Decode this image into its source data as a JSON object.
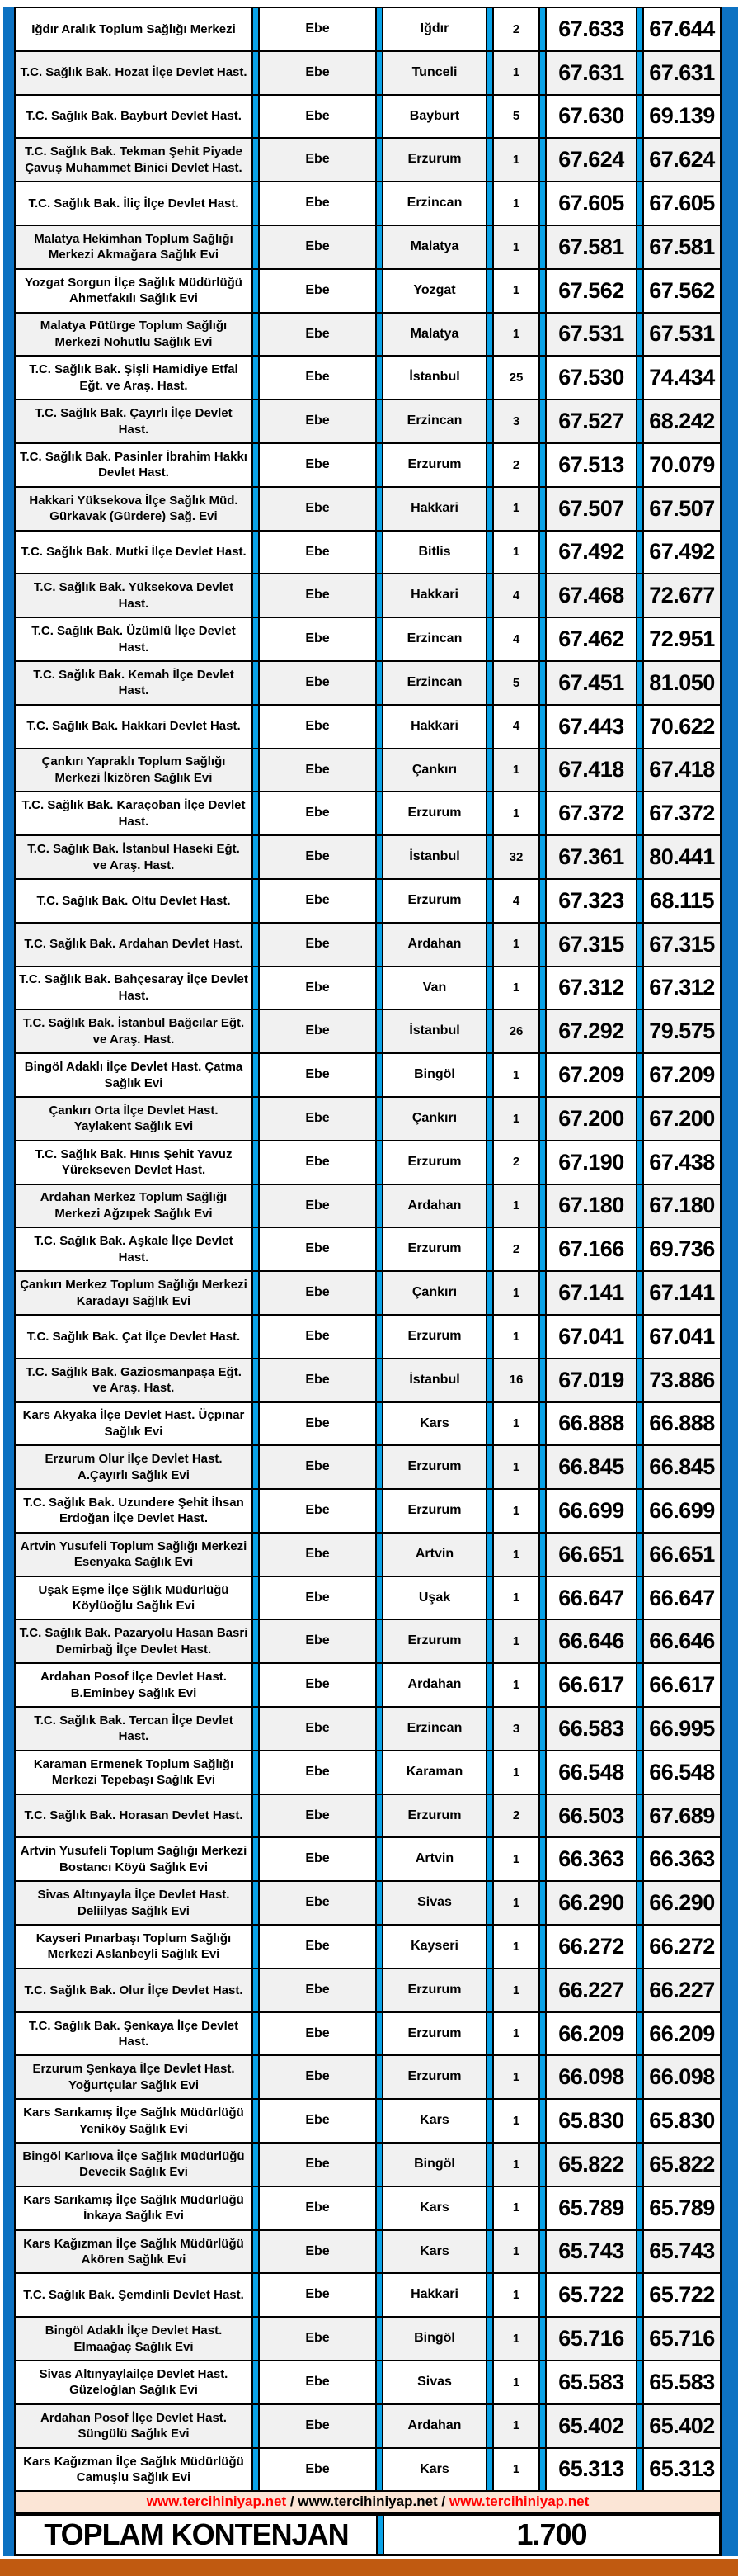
{
  "colors": {
    "accent_cyan": "#0aa3e8",
    "edge_blue": "#0d72c2",
    "footer_orange": "#c05a11",
    "footer_pink": "#fbe5d6",
    "link_red": "#ff0000",
    "row_alt": "#f1f1f1"
  },
  "table": {
    "rows": [
      {
        "institution": "Iğdır Aralık Toplum Sağlığı Merkezi",
        "title": "Ebe",
        "city": "Iğdır",
        "quota": "2",
        "score1": "67.633",
        "score2": "67.644"
      },
      {
        "institution": "T.C. Sağlık Bak. Hozat İlçe Devlet Hast.",
        "title": "Ebe",
        "city": "Tunceli",
        "quota": "1",
        "score1": "67.631",
        "score2": "67.631"
      },
      {
        "institution": "T.C. Sağlık Bak. Bayburt Devlet Hast.",
        "title": "Ebe",
        "city": "Bayburt",
        "quota": "5",
        "score1": "67.630",
        "score2": "69.139"
      },
      {
        "institution": "T.C. Sağlık Bak. Tekman Şehit Piyade Çavuş Muhammet Binici Devlet Hast.",
        "title": "Ebe",
        "city": "Erzurum",
        "quota": "1",
        "score1": "67.624",
        "score2": "67.624"
      },
      {
        "institution": "T.C. Sağlık Bak. İliç İlçe Devlet Hast.",
        "title": "Ebe",
        "city": "Erzincan",
        "quota": "1",
        "score1": "67.605",
        "score2": "67.605"
      },
      {
        "institution": "Malatya Hekimhan Toplum Sağlığı Merkezi Akmağara Sağlık Evi",
        "title": "Ebe",
        "city": "Malatya",
        "quota": "1",
        "score1": "67.581",
        "score2": "67.581"
      },
      {
        "institution": "Yozgat Sorgun İlçe Sağlık Müdürlüğü Ahmetfakılı Sağlık Evi",
        "title": "Ebe",
        "city": "Yozgat",
        "quota": "1",
        "score1": "67.562",
        "score2": "67.562"
      },
      {
        "institution": "Malatya Pütürge Toplum Sağlığı Merkezi Nohutlu Sağlık Evi",
        "title": "Ebe",
        "city": "Malatya",
        "quota": "1",
        "score1": "67.531",
        "score2": "67.531"
      },
      {
        "institution": "T.C. Sağlık Bak. Şişli Hamidiye Etfal Eğt. ve Araş. Hast.",
        "title": "Ebe",
        "city": "İstanbul",
        "quota": "25",
        "score1": "67.530",
        "score2": "74.434"
      },
      {
        "institution": "T.C. Sağlık Bak. Çayırlı İlçe Devlet Hast.",
        "title": "Ebe",
        "city": "Erzincan",
        "quota": "3",
        "score1": "67.527",
        "score2": "68.242"
      },
      {
        "institution": "T.C. Sağlık Bak. Pasinler İbrahim Hakkı Devlet Hast.",
        "title": "Ebe",
        "city": "Erzurum",
        "quota": "2",
        "score1": "67.513",
        "score2": "70.079"
      },
      {
        "institution": "Hakkari Yüksekova İlçe Sağlık Müd. Gürkavak (Gürdere) Sağ. Evi",
        "title": "Ebe",
        "city": "Hakkari",
        "quota": "1",
        "score1": "67.507",
        "score2": "67.507"
      },
      {
        "institution": "T.C. Sağlık Bak. Mutki İlçe Devlet Hast.",
        "title": "Ebe",
        "city": "Bitlis",
        "quota": "1",
        "score1": "67.492",
        "score2": "67.492"
      },
      {
        "institution": "T.C. Sağlık Bak. Yüksekova Devlet Hast.",
        "title": "Ebe",
        "city": "Hakkari",
        "quota": "4",
        "score1": "67.468",
        "score2": "72.677"
      },
      {
        "institution": "T.C. Sağlık Bak. Üzümlü İlçe Devlet Hast.",
        "title": "Ebe",
        "city": "Erzincan",
        "quota": "4",
        "score1": "67.462",
        "score2": "72.951"
      },
      {
        "institution": "T.C. Sağlık Bak. Kemah İlçe Devlet Hast.",
        "title": "Ebe",
        "city": "Erzincan",
        "quota": "5",
        "score1": "67.451",
        "score2": "81.050"
      },
      {
        "institution": "T.C. Sağlık Bak. Hakkari Devlet Hast.",
        "title": "Ebe",
        "city": "Hakkari",
        "quota": "4",
        "score1": "67.443",
        "score2": "70.622"
      },
      {
        "institution": "Çankırı Yapraklı Toplum Sağlığı Merkezi İkizören Sağlık Evi",
        "title": "Ebe",
        "city": "Çankırı",
        "quota": "1",
        "score1": "67.418",
        "score2": "67.418"
      },
      {
        "institution": "T.C. Sağlık Bak. Karaçoban İlçe Devlet Hast.",
        "title": "Ebe",
        "city": "Erzurum",
        "quota": "1",
        "score1": "67.372",
        "score2": "67.372"
      },
      {
        "institution": "T.C. Sağlık Bak. İstanbul Haseki Eğt. ve Araş. Hast.",
        "title": "Ebe",
        "city": "İstanbul",
        "quota": "32",
        "score1": "67.361",
        "score2": "80.441"
      },
      {
        "institution": "T.C. Sağlık Bak. Oltu Devlet Hast.",
        "title": "Ebe",
        "city": "Erzurum",
        "quota": "4",
        "score1": "67.323",
        "score2": "68.115"
      },
      {
        "institution": "T.C. Sağlık Bak. Ardahan Devlet Hast.",
        "title": "Ebe",
        "city": "Ardahan",
        "quota": "1",
        "score1": "67.315",
        "score2": "67.315"
      },
      {
        "institution": "T.C. Sağlık Bak. Bahçesaray İlçe Devlet Hast.",
        "title": "Ebe",
        "city": "Van",
        "quota": "1",
        "score1": "67.312",
        "score2": "67.312"
      },
      {
        "institution": "T.C. Sağlık Bak. İstanbul Bağcılar Eğt. ve Araş. Hast.",
        "title": "Ebe",
        "city": "İstanbul",
        "quota": "26",
        "score1": "67.292",
        "score2": "79.575"
      },
      {
        "institution": "Bingöl Adaklı İlçe Devlet Hast. Çatma Sağlık Evi",
        "title": "Ebe",
        "city": "Bingöl",
        "quota": "1",
        "score1": "67.209",
        "score2": "67.209"
      },
      {
        "institution": "Çankırı Orta İlçe Devlet Hast. Yaylakent Sağlık Evi",
        "title": "Ebe",
        "city": "Çankırı",
        "quota": "1",
        "score1": "67.200",
        "score2": "67.200"
      },
      {
        "institution": "T.C. Sağlık Bak. Hınıs Şehit Yavuz Yürekseven Devlet Hast.",
        "title": "Ebe",
        "city": "Erzurum",
        "quota": "2",
        "score1": "67.190",
        "score2": "67.438"
      },
      {
        "institution": "Ardahan Merkez Toplum Sağlığı Merkezi Ağzıpek Sağlık Evi",
        "title": "Ebe",
        "city": "Ardahan",
        "quota": "1",
        "score1": "67.180",
        "score2": "67.180"
      },
      {
        "institution": "T.C. Sağlık Bak. Aşkale İlçe Devlet Hast.",
        "title": "Ebe",
        "city": "Erzurum",
        "quota": "2",
        "score1": "67.166",
        "score2": "69.736"
      },
      {
        "institution": "Çankırı Merkez Toplum Sağlığı Merkezi Karadayı Sağlık Evi",
        "title": "Ebe",
        "city": "Çankırı",
        "quota": "1",
        "score1": "67.141",
        "score2": "67.141"
      },
      {
        "institution": "T.C. Sağlık Bak. Çat İlçe Devlet Hast.",
        "title": "Ebe",
        "city": "Erzurum",
        "quota": "1",
        "score1": "67.041",
        "score2": "67.041"
      },
      {
        "institution": "T.C. Sağlık Bak. Gaziosmanpaşa Eğt. ve Araş. Hast.",
        "title": "Ebe",
        "city": "İstanbul",
        "quota": "16",
        "score1": "67.019",
        "score2": "73.886"
      },
      {
        "institution": "Kars Akyaka İlçe Devlet Hast. Üçpınar Sağlık Evi",
        "title": "Ebe",
        "city": "Kars",
        "quota": "1",
        "score1": "66.888",
        "score2": "66.888"
      },
      {
        "institution": "Erzurum Olur İlçe Devlet Hast. A.Çayırlı Sağlık Evi",
        "title": "Ebe",
        "city": "Erzurum",
        "quota": "1",
        "score1": "66.845",
        "score2": "66.845"
      },
      {
        "institution": "T.C. Sağlık Bak. Uzundere Şehit İhsan Erdoğan İlçe Devlet Hast.",
        "title": "Ebe",
        "city": "Erzurum",
        "quota": "1",
        "score1": "66.699",
        "score2": "66.699"
      },
      {
        "institution": "Artvin Yusufeli Toplum Sağlığı Merkezi Esenyaka Sağlık Evi",
        "title": "Ebe",
        "city": "Artvin",
        "quota": "1",
        "score1": "66.651",
        "score2": "66.651"
      },
      {
        "institution": "Uşak Eşme İlçe Sğlık Müdürlüğü Köylüoğlu Sağlık Evi",
        "title": "Ebe",
        "city": "Uşak",
        "quota": "1",
        "score1": "66.647",
        "score2": "66.647"
      },
      {
        "institution": "T.C. Sağlık Bak. Pazaryolu Hasan Basri Demirbağ İlçe Devlet Hast.",
        "title": "Ebe",
        "city": "Erzurum",
        "quota": "1",
        "score1": "66.646",
        "score2": "66.646"
      },
      {
        "institution": "Ardahan Posof İlçe Devlet Hast. B.Eminbey Sağlık Evi",
        "title": "Ebe",
        "city": "Ardahan",
        "quota": "1",
        "score1": "66.617",
        "score2": "66.617"
      },
      {
        "institution": "T.C. Sağlık Bak. Tercan İlçe Devlet Hast.",
        "title": "Ebe",
        "city": "Erzincan",
        "quota": "3",
        "score1": "66.583",
        "score2": "66.995"
      },
      {
        "institution": "Karaman Ermenek Toplum Sağlığı Merkezi Tepebaşı Sağlık Evi",
        "title": "Ebe",
        "city": "Karaman",
        "quota": "1",
        "score1": "66.548",
        "score2": "66.548"
      },
      {
        "institution": "T.C. Sağlık Bak. Horasan Devlet Hast.",
        "title": "Ebe",
        "city": "Erzurum",
        "quota": "2",
        "score1": "66.503",
        "score2": "67.689"
      },
      {
        "institution": "Artvin Yusufeli Toplum Sağlığı Merkezi Bostancı Köyü Sağlık Evi",
        "title": "Ebe",
        "city": "Artvin",
        "quota": "1",
        "score1": "66.363",
        "score2": "66.363"
      },
      {
        "institution": "Sivas Altınyayla İlçe Devlet Hast. Deliilyas Sağlık Evi",
        "title": "Ebe",
        "city": "Sivas",
        "quota": "1",
        "score1": "66.290",
        "score2": "66.290"
      },
      {
        "institution": "Kayseri Pınarbaşı Toplum Sağlığı Merkezi Aslanbeyli Sağlık Evi",
        "title": "Ebe",
        "city": "Kayseri",
        "quota": "1",
        "score1": "66.272",
        "score2": "66.272"
      },
      {
        "institution": "T.C. Sağlık Bak. Olur İlçe Devlet Hast.",
        "title": "Ebe",
        "city": "Erzurum",
        "quota": "1",
        "score1": "66.227",
        "score2": "66.227"
      },
      {
        "institution": "T.C. Sağlık Bak. Şenkaya İlçe Devlet Hast.",
        "title": "Ebe",
        "city": "Erzurum",
        "quota": "1",
        "score1": "66.209",
        "score2": "66.209"
      },
      {
        "institution": "Erzurum Şenkaya İlçe Devlet Hast. Yoğurtçular Sağlık Evi",
        "title": "Ebe",
        "city": "Erzurum",
        "quota": "1",
        "score1": "66.098",
        "score2": "66.098"
      },
      {
        "institution": "Kars Sarıkamış İlçe Sağlık Müdürlüğü Yeniköy Sağlık Evi",
        "title": "Ebe",
        "city": "Kars",
        "quota": "1",
        "score1": "65.830",
        "score2": "65.830"
      },
      {
        "institution": "Bingöl Karlıova İlçe Sağlık Müdürlüğü Devecik Sağlık Evi",
        "title": "Ebe",
        "city": "Bingöl",
        "quota": "1",
        "score1": "65.822",
        "score2": "65.822"
      },
      {
        "institution": "Kars Sarıkamış İlçe Sağlık Müdürlüğü İnkaya Sağlık Evi",
        "title": "Ebe",
        "city": "Kars",
        "quota": "1",
        "score1": "65.789",
        "score2": "65.789"
      },
      {
        "institution": "Kars Kağızman İlçe Sağlık Müdürlüğü Akören Sağlık Evi",
        "title": "Ebe",
        "city": "Kars",
        "quota": "1",
        "score1": "65.743",
        "score2": "65.743"
      },
      {
        "institution": "T.C. Sağlık Bak. Şemdinli Devlet Hast.",
        "title": "Ebe",
        "city": "Hakkari",
        "quota": "1",
        "score1": "65.722",
        "score2": "65.722"
      },
      {
        "institution": "Bingöl Adaklı İlçe Devlet Hast. Elmaağaç Sağlık Evi",
        "title": "Ebe",
        "city": "Bingöl",
        "quota": "1",
        "score1": "65.716",
        "score2": "65.716"
      },
      {
        "institution": "Sivas Altınyaylailçe Devlet Hast. Güzeloğlan Sağlık Evi",
        "title": "Ebe",
        "city": "Sivas",
        "quota": "1",
        "score1": "65.583",
        "score2": "65.583"
      },
      {
        "institution": "Ardahan Posof İlçe Devlet Hast. Süngülü Sağlık Evi",
        "title": "Ebe",
        "city": "Ardahan",
        "quota": "1",
        "score1": "65.402",
        "score2": "65.402"
      },
      {
        "institution": "Kars Kağızman İlçe Sağlık Müdürlüğü Camuşlu Sağlık Evi",
        "title": "Ebe",
        "city": "Kars",
        "quota": "1",
        "score1": "65.313",
        "score2": "65.313"
      }
    ]
  },
  "footer": {
    "links": [
      "www.tercihiniyap.net",
      "www.tercihiniyap.net",
      "www.tercihiniyap.net"
    ],
    "link_colors": [
      "red",
      "black",
      "red"
    ],
    "separator": " / ",
    "total_label": "TOPLAM KONTENJAN",
    "total_value": "1.700"
  }
}
